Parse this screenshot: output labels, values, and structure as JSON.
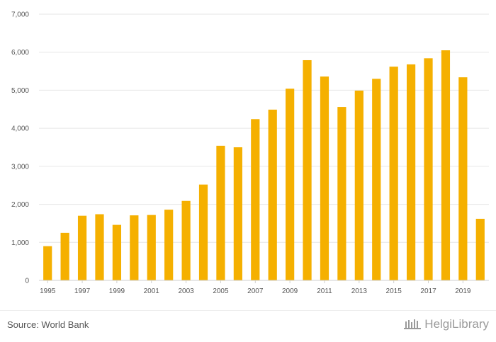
{
  "chart_data": {
    "type": "bar",
    "categories": [
      "1995",
      "1996",
      "1997",
      "1998",
      "1999",
      "2000",
      "2001",
      "2002",
      "2003",
      "2004",
      "2005",
      "2006",
      "2007",
      "2008",
      "2009",
      "2010",
      "2011",
      "2012",
      "2013",
      "2014",
      "2015",
      "2016",
      "2017",
      "2018",
      "2019",
      "2020"
    ],
    "values": [
      900,
      1250,
      1700,
      1740,
      1460,
      1710,
      1720,
      1860,
      2090,
      2520,
      3540,
      3500,
      4240,
      4490,
      5040,
      5790,
      5360,
      4560,
      4990,
      5300,
      5620,
      5680,
      5840,
      6050,
      5340,
      1620
    ],
    "x_tick_labels": [
      "1995",
      "1997",
      "1999",
      "2001",
      "2003",
      "2005",
      "2007",
      "2009",
      "2011",
      "2013",
      "2015",
      "2017",
      "2019"
    ],
    "y_tick_labels": [
      "0",
      "1,000",
      "2,000",
      "3,000",
      "4,000",
      "5,000",
      "6,000",
      "7,000"
    ],
    "ylim": [
      0,
      7000
    ],
    "grid": true,
    "color": "#f5b000"
  },
  "footer": {
    "source": "Source: World Bank",
    "logo_text": "HelgiLibrary",
    "logo_icon": "library-icon"
  }
}
